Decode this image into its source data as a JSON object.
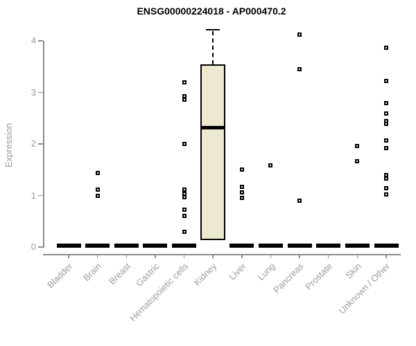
{
  "chart_data": {
    "type": "boxplot",
    "title": "ENSG00000224018 - AP000470.2",
    "ylabel": "Expression",
    "xlabel": "",
    "ylim": [
      0,
      4.3
    ],
    "yticks": [
      0,
      1,
      2,
      3,
      4
    ],
    "grid": false,
    "legend": null,
    "colors": {
      "box_fill": "#ede8d0",
      "box_border": "#000000",
      "median": "#000000",
      "axis": "#8a8a8a",
      "tick_label": "#9b9b9b",
      "title": "#000000",
      "marker_border": "#000000",
      "marker_fill": "#ffffff"
    },
    "categories": [
      "Bladder",
      "Brain",
      "Breast",
      "Gastric",
      "Hematopoietic cells",
      "Kidney",
      "Liver",
      "Lung",
      "Pancreas",
      "Prostate",
      "Skin",
      "Unknown / Other"
    ],
    "boxes": [
      {
        "category": "Bladder",
        "q1": 0,
        "median": 0,
        "q3": 0,
        "whisker_low": 0,
        "whisker_high": 0,
        "outliers": []
      },
      {
        "category": "Brain",
        "q1": 0,
        "median": 0,
        "q3": 0,
        "whisker_low": 0,
        "whisker_high": 0,
        "outliers": [
          1.44,
          1.12,
          1.0
        ]
      },
      {
        "category": "Breast",
        "q1": 0,
        "median": 0,
        "q3": 0,
        "whisker_low": 0,
        "whisker_high": 0,
        "outliers": []
      },
      {
        "category": "Gastric",
        "q1": 0,
        "median": 0,
        "q3": 0,
        "whisker_low": 0,
        "whisker_high": 0,
        "outliers": []
      },
      {
        "category": "Hematopoietic cells",
        "q1": 0,
        "median": 0,
        "q3": 0,
        "whisker_low": 0,
        "whisker_high": 0,
        "outliers": [
          3.19,
          2.93,
          2.86,
          2.0,
          1.11,
          1.04,
          0.97,
          0.72,
          0.6,
          0.29
        ]
      },
      {
        "category": "Kidney",
        "q1": 0.14,
        "median": 2.32,
        "q3": 3.54,
        "whisker_low": 0.14,
        "whisker_high": 4.22,
        "outliers": []
      },
      {
        "category": "Liver",
        "q1": 0,
        "median": 0,
        "q3": 0,
        "whisker_low": 0,
        "whisker_high": 0,
        "outliers": [
          1.5,
          1.17,
          1.06,
          0.95
        ]
      },
      {
        "category": "Lung",
        "q1": 0,
        "median": 0,
        "q3": 0,
        "whisker_low": 0,
        "whisker_high": 0,
        "outliers": [
          1.58
        ]
      },
      {
        "category": "Pancreas",
        "q1": 0,
        "median": 0,
        "q3": 0,
        "whisker_low": 0,
        "whisker_high": 0,
        "outliers": [
          4.12,
          3.45,
          0.9
        ]
      },
      {
        "category": "Prostate",
        "q1": 0,
        "median": 0,
        "q3": 0,
        "whisker_low": 0,
        "whisker_high": 0,
        "outliers": []
      },
      {
        "category": "Skin",
        "q1": 0,
        "median": 0,
        "q3": 0,
        "whisker_low": 0,
        "whisker_high": 0,
        "outliers": [
          1.96,
          1.66
        ]
      },
      {
        "category": "Unknown / Other",
        "q1": 0,
        "median": 0,
        "q3": 0,
        "whisker_low": 0,
        "whisker_high": 0,
        "outliers": [
          3.87,
          3.22,
          2.79,
          2.59,
          2.44,
          2.39,
          2.07,
          1.92,
          1.4,
          1.33,
          1.14,
          1.02
        ]
      }
    ]
  }
}
